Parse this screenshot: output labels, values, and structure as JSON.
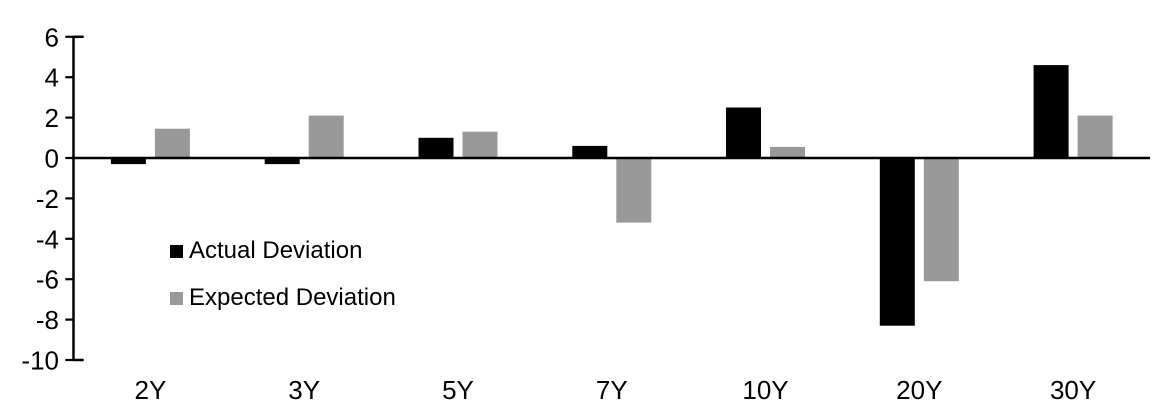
{
  "chart_data": {
    "type": "bar",
    "title": "",
    "xlabel": "",
    "ylabel": "",
    "categories": [
      "2Y",
      "3Y",
      "5Y",
      "7Y",
      "10Y",
      "20Y",
      "30Y"
    ],
    "series": [
      {
        "name": "Actual Deviation",
        "color": "#000000",
        "values": [
          -0.3,
          -0.3,
          1.0,
          0.6,
          2.5,
          -8.3,
          4.6
        ]
      },
      {
        "name": "Expected Deviation",
        "color": "#999999",
        "values": [
          1.45,
          2.1,
          1.3,
          -3.2,
          0.55,
          -6.1,
          2.1
        ]
      }
    ],
    "ylim": [
      -10,
      6
    ],
    "yticks": [
      6,
      4,
      2,
      0,
      -2,
      -4,
      -6,
      -8,
      -10
    ],
    "grid": false,
    "legend_position": "inside-left",
    "axis_color": "#000000",
    "background": "#ffffff"
  }
}
